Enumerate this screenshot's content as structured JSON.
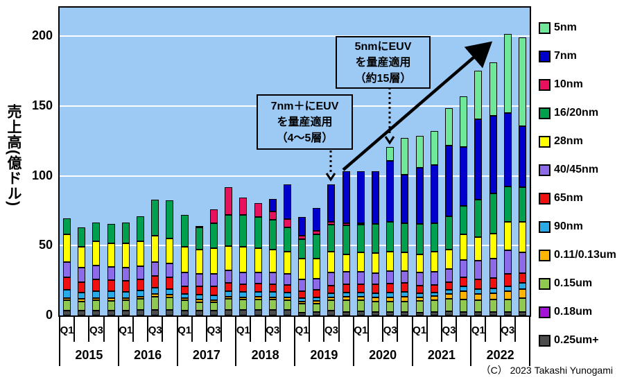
{
  "y_axis": {
    "label": "売上高(億ドル)",
    "ticks": [
      0,
      50,
      100,
      150,
      200
    ],
    "max": 220
  },
  "x_axis": {
    "years": [
      "2015",
      "2016",
      "2017",
      "2018",
      "2019",
      "2020",
      "2021",
      "2022"
    ],
    "quarter_labels": [
      "Q1",
      "Q3"
    ]
  },
  "annotations": {
    "box_5nm": {
      "lines": [
        "5nmにEUV",
        "を量産適用",
        "（約15層）"
      ],
      "points_to": "2020Q3"
    },
    "box_7nm": {
      "lines": [
        "7nm＋にEUV",
        "を量産適用",
        "（4～5層）"
      ],
      "points_to": "2019Q3"
    }
  },
  "copyright": "（C） 2023 Takashi Yunogami",
  "colors": {
    "plot_background": "#9CCAF5",
    "gridline": "#FFFFFF",
    "axis": "#000000",
    "arrow": "#000000"
  },
  "chart_data": {
    "type": "bar",
    "stacked": true,
    "title": "",
    "xlabel": "",
    "ylabel": "売上高(億ドル)",
    "ylim": [
      0,
      220
    ],
    "grid": true,
    "legend_position": "right",
    "categories": [
      "2015Q1",
      "2015Q2",
      "2015Q3",
      "2015Q4",
      "2016Q1",
      "2016Q2",
      "2016Q3",
      "2016Q4",
      "2017Q1",
      "2017Q2",
      "2017Q3",
      "2017Q4",
      "2018Q1",
      "2018Q2",
      "2018Q3",
      "2018Q4",
      "2019Q1",
      "2019Q2",
      "2019Q3",
      "2019Q4",
      "2020Q1",
      "2020Q2",
      "2020Q3",
      "2020Q4",
      "2021Q1",
      "2021Q2",
      "2021Q3",
      "2021Q4",
      "2022Q1",
      "2022Q2",
      "2022Q3",
      "2022Q4"
    ],
    "series": [
      {
        "name": "0.25um+",
        "color": "#4D4D4D",
        "values": [
          3.3,
          3.4,
          3.4,
          3.4,
          3.4,
          3.9,
          4,
          4,
          3.4,
          3.4,
          3.4,
          4.2,
          3.9,
          3.9,
          3.9,
          3.9,
          2,
          2.5,
          3.3,
          2.5,
          2.8,
          2.5,
          2.5,
          2.5,
          2.1,
          2.5,
          3,
          2.5,
          2.3,
          2.5,
          2.5,
          2.5
        ]
      },
      {
        "name": "0.18um",
        "color": "#A513D8",
        "values": [
          0,
          0,
          0,
          0,
          0,
          0,
          0,
          0,
          0,
          0,
          0,
          0,
          0,
          0,
          0,
          0,
          0,
          0,
          0,
          0,
          0,
          0,
          0,
          0,
          0,
          0,
          0,
          0,
          0,
          0,
          0,
          0
        ]
      },
      {
        "name": "0.15um",
        "color": "#8FC94F",
        "values": [
          7.8,
          6.7,
          7.4,
          7.2,
          7.5,
          8,
          9.5,
          9,
          7.7,
          6.1,
          6,
          7.5,
          7.3,
          7.4,
          7.3,
          7,
          6.3,
          6.1,
          7.5,
          8.3,
          8,
          7.5,
          7.5,
          7.6,
          8.3,
          8.3,
          8.9,
          9.1,
          8.8,
          9,
          9.1,
          9.9
        ]
      },
      {
        "name": "0.11/0.13um",
        "color": "#FFB400",
        "values": [
          1.3,
          1.6,
          1.6,
          1.6,
          1.5,
          1.5,
          1.7,
          1.7,
          1.3,
          1.7,
          1.7,
          1.6,
          1.7,
          2,
          1.9,
          2,
          1.6,
          1.6,
          2.1,
          2.4,
          2.4,
          2.8,
          3,
          3.4,
          2.7,
          2.9,
          3.3,
          5.8,
          4.4,
          4.5,
          5.8,
          6.5
        ]
      },
      {
        "name": "90nm",
        "color": "#29ABE8",
        "values": [
          5.8,
          4.5,
          5.1,
          5,
          4.5,
          4.5,
          4.5,
          4,
          3,
          3.8,
          3.4,
          4.2,
          3.8,
          3.8,
          3.6,
          3.4,
          2.5,
          2.5,
          2.8,
          3.3,
          3.2,
          3.1,
          3.5,
          3.3,
          2.9,
          2.8,
          3,
          3.3,
          3.5,
          3.5,
          3.6,
          4.2
        ]
      },
      {
        "name": "65nm",
        "color": "#F01010",
        "values": [
          9.1,
          7.6,
          8.3,
          8,
          8,
          8,
          8.5,
          8.5,
          5.3,
          5.8,
          6.2,
          5.8,
          5.8,
          5.6,
          5.8,
          5.6,
          5,
          5.5,
          5.8,
          5.8,
          6,
          6.2,
          6.5,
          6.3,
          5.5,
          5.5,
          5.6,
          6.6,
          7,
          7.5,
          8.8,
          7.4
        ]
      },
      {
        "name": "40/45nm",
        "color": "#8C6AE8",
        "values": [
          10.8,
          10.3,
          10,
          9.5,
          9.5,
          9.5,
          10,
          10,
          9.9,
          9.1,
          9.1,
          9.1,
          8.3,
          8.3,
          8.3,
          8,
          8.2,
          8.2,
          9.1,
          9.1,
          9,
          8.2,
          9,
          8.6,
          9.1,
          9.4,
          9.4,
          12.4,
          13,
          13.5,
          17,
          14.9
        ]
      },
      {
        "name": "28nm",
        "color": "#FFFF00",
        "values": [
          19.8,
          15.2,
          17.3,
          17,
          17,
          17.5,
          19,
          18,
          18.6,
          17.4,
          18.1,
          17.4,
          18.2,
          17,
          16.4,
          15.6,
          14.9,
          14.1,
          14.9,
          12.4,
          14,
          14.4,
          13.5,
          13.5,
          13.2,
          14.1,
          14.1,
          18.2,
          17,
          18,
          20.3,
          21.5
        ]
      },
      {
        "name": "16/20nm",
        "color": "#00A04E",
        "values": [
          11.6,
          13.9,
          13.3,
          14,
          15,
          18.1,
          25.5,
          27,
          22.8,
          15.5,
          18.2,
          22.2,
          23,
          22.3,
          21.4,
          17.7,
          14.1,
          17.4,
          19.4,
          20.7,
          19.6,
          20.6,
          21.5,
          21,
          21.6,
          20.7,
          23.8,
          20.7,
          27,
          29,
          25.1,
          24.8
        ]
      },
      {
        "name": "10nm",
        "color": "#E8115E",
        "values": [
          0,
          0,
          0,
          0,
          0,
          0,
          0,
          0,
          0,
          1.2,
          9.9,
          19.8,
          12.4,
          9.9,
          5.8,
          5.8,
          2.5,
          2.5,
          2.1,
          1.7,
          1.2,
          0,
          0,
          0,
          0,
          0,
          0,
          0,
          0,
          0,
          0,
          0
        ]
      },
      {
        "name": "7nm",
        "color": "#0000CC",
        "values": [
          0,
          0,
          0,
          0,
          0,
          0,
          0,
          0,
          0,
          0,
          0,
          0,
          0,
          0,
          9.1,
          24.8,
          13.2,
          16.5,
          26.8,
          36.9,
          36.9,
          37.8,
          43.8,
          34.7,
          40.5,
          41.3,
          50.5,
          42.1,
          57.6,
          55.6,
          52.8,
          43.8
        ]
      },
      {
        "name": "5nm",
        "color": "#6FE89A",
        "values": [
          0,
          0,
          0,
          0,
          0,
          0,
          0,
          0,
          0,
          0,
          0,
          0,
          0,
          0,
          0,
          0,
          0,
          0,
          0,
          0,
          0,
          0,
          9.9,
          26,
          22.6,
          24.3,
          26.8,
          36,
          34.7,
          38,
          56.3,
          63.7
        ]
      }
    ]
  }
}
